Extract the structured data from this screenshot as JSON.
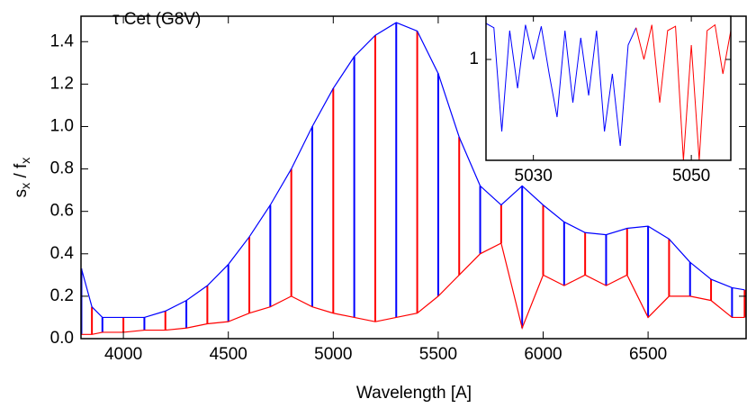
{
  "chart_data": [
    {
      "type": "spectrum",
      "title": "τ Cet (G8V)",
      "xlabel": "Wavelength [A]",
      "ylabel": [
        "s",
        "x",
        " / f",
        "x"
      ],
      "x": [
        3800,
        3850,
        3900,
        4000,
        4100,
        4200,
        4300,
        4400,
        4500,
        4600,
        4700,
        4800,
        4900,
        5000,
        5100,
        5200,
        5300,
        5400,
        5500,
        5600,
        5700,
        5800,
        5900,
        6000,
        6100,
        6200,
        6300,
        6400,
        6500,
        6600,
        6700,
        6800,
        6900,
        6960
      ],
      "series": [
        {
          "color": "#0000ff",
          "values": [
            0.33,
            0.15,
            0.1,
            0.1,
            0.1,
            0.13,
            0.18,
            0.25,
            0.35,
            0.48,
            0.63,
            0.8,
            1.0,
            1.18,
            1.33,
            1.43,
            1.49,
            1.45,
            1.25,
            0.95,
            0.72,
            0.63,
            0.72,
            0.63,
            0.55,
            0.5,
            0.49,
            0.52,
            0.53,
            0.47,
            0.36,
            0.28,
            0.24,
            0.23
          ]
        },
        {
          "color": "#ff0000",
          "values": [
            0.02,
            0.02,
            0.03,
            0.03,
            0.04,
            0.04,
            0.05,
            0.07,
            0.08,
            0.12,
            0.15,
            0.2,
            0.15,
            0.12,
            0.1,
            0.08,
            0.1,
            0.12,
            0.2,
            0.3,
            0.4,
            0.45,
            0.05,
            0.3,
            0.25,
            0.3,
            0.25,
            0.3,
            0.1,
            0.2,
            0.2,
            0.18,
            0.1,
            0.1
          ]
        }
      ],
      "xlim": [
        3798,
        6967
      ],
      "ylim": [
        0,
        1.52
      ],
      "xticks": [
        4000,
        4500,
        5000,
        5500,
        6000,
        6500
      ],
      "yticks": [
        {
          "value": 0,
          "label": "0.0"
        },
        {
          "value": 0.2,
          "label": "0.2"
        },
        {
          "value": 0.4,
          "label": "0.4"
        },
        {
          "value": 0.6,
          "label": "0.6"
        },
        {
          "value": 0.8,
          "label": "0.8"
        },
        {
          "value": 1,
          "label": "1.0"
        },
        {
          "value": 1.2,
          "label": "1.2"
        },
        {
          "value": 1.4,
          "label": "1.4"
        }
      ]
    },
    {
      "type": "line",
      "series": [
        {
          "color": "#0000ff",
          "x": [
            5024,
            5025,
            5026,
            5027,
            5028,
            5029,
            5030,
            5031,
            5032,
            5033,
            5034,
            5035,
            5036,
            5037,
            5038,
            5039,
            5040,
            5041,
            5042,
            5043
          ],
          "values": [
            1.25,
            1.22,
            0.5,
            1.2,
            0.8,
            1.24,
            1.0,
            1.23,
            0.9,
            0.6,
            1.2,
            0.7,
            1.15,
            0.75,
            1.2,
            0.5,
            0.9,
            0.4,
            1.1,
            1.22
          ]
        },
        {
          "color": "#ff0000",
          "x": [
            5043,
            5044,
            5045,
            5046,
            5047,
            5048,
            5049,
            5050,
            5051,
            5052,
            5053,
            5054,
            5055
          ],
          "values": [
            1.22,
            1.0,
            1.24,
            0.7,
            1.2,
            1.23,
            0.3,
            1.1,
            0.3,
            1.2,
            1.24,
            0.9,
            1.2
          ]
        }
      ],
      "xlim": [
        5024,
        5055
      ],
      "ylim": [
        0.3,
        1.3
      ],
      "xticks": [
        5030,
        5050
      ],
      "yticks": [
        1
      ]
    }
  ]
}
